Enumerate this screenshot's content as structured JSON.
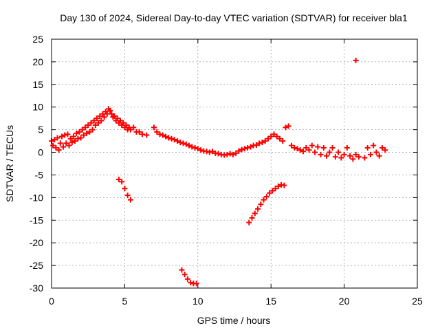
{
  "chart_data": {
    "type": "scatter",
    "title": "Day 130 of 2024, Sidereal Day-to-day VTEC variation (SDTVAR) for receiver bla1",
    "xlabel": "GPS time / hours",
    "ylabel": "SDTVAR / TECUs",
    "xlim": [
      0,
      25
    ],
    "ylim": [
      -30,
      25
    ],
    "xticks": [
      0,
      5,
      10,
      15,
      20,
      25
    ],
    "yticks": [
      -30,
      -25,
      -20,
      -15,
      -10,
      -5,
      0,
      5,
      10,
      15,
      20,
      25
    ],
    "grid": true,
    "marker": "+",
    "color": "#ff0000",
    "series": [
      {
        "name": "main trace",
        "points": [
          [
            0.0,
            2.5
          ],
          [
            0.1,
            1.5
          ],
          [
            0.2,
            2.8
          ],
          [
            0.3,
            1.0
          ],
          [
            0.4,
            3.2
          ],
          [
            0.5,
            0.5
          ],
          [
            0.6,
            2.0
          ],
          [
            0.7,
            3.5
          ],
          [
            0.8,
            1.2
          ],
          [
            0.9,
            3.8
          ],
          [
            1.0,
            2.0
          ],
          [
            1.1,
            4.0
          ],
          [
            1.2,
            1.5
          ],
          [
            1.3,
            3.0
          ],
          [
            1.4,
            2.2
          ],
          [
            1.5,
            3.5
          ],
          [
            1.6,
            2.5
          ],
          [
            1.7,
            4.2
          ],
          [
            1.8,
            3.0
          ],
          [
            1.9,
            4.5
          ],
          [
            2.0,
            3.2
          ],
          [
            2.1,
            5.0
          ],
          [
            2.2,
            3.8
          ],
          [
            2.3,
            5.5
          ],
          [
            2.4,
            4.2
          ],
          [
            2.5,
            6.0
          ],
          [
            2.6,
            4.5
          ],
          [
            2.7,
            6.5
          ],
          [
            2.8,
            5.0
          ],
          [
            2.9,
            7.0
          ],
          [
            3.0,
            6.0
          ],
          [
            3.1,
            7.5
          ],
          [
            3.2,
            6.5
          ],
          [
            3.3,
            8.0
          ],
          [
            3.4,
            7.0
          ],
          [
            3.5,
            8.5
          ],
          [
            3.6,
            7.8
          ],
          [
            3.7,
            9.0
          ],
          [
            3.8,
            8.5
          ],
          [
            3.9,
            9.6
          ],
          [
            4.0,
            9.2
          ],
          [
            4.1,
            8.5
          ],
          [
            4.2,
            7.8
          ],
          [
            4.3,
            8.0
          ],
          [
            4.4,
            7.0
          ],
          [
            4.5,
            7.5
          ],
          [
            4.6,
            6.5
          ],
          [
            4.7,
            7.0
          ],
          [
            4.8,
            6.0
          ],
          [
            4.9,
            6.5
          ],
          [
            5.0,
            5.5
          ],
          [
            5.1,
            6.0
          ],
          [
            5.2,
            5.0
          ],
          [
            5.3,
            5.5
          ],
          [
            5.4,
            5.0
          ],
          [
            5.6,
            5.5
          ],
          [
            5.8,
            4.5
          ],
          [
            6.0,
            4.5
          ],
          [
            6.2,
            4.0
          ],
          [
            6.5,
            3.8
          ],
          [
            7.0,
            5.5
          ],
          [
            7.2,
            4.5
          ],
          [
            7.4,
            4.0
          ],
          [
            7.6,
            3.8
          ],
          [
            7.8,
            3.5
          ],
          [
            8.0,
            3.2
          ],
          [
            8.2,
            3.0
          ],
          [
            8.4,
            2.8
          ],
          [
            8.6,
            2.5
          ],
          [
            8.8,
            2.2
          ],
          [
            9.0,
            2.0
          ],
          [
            9.2,
            1.8
          ],
          [
            9.4,
            1.5
          ],
          [
            9.6,
            1.2
          ],
          [
            9.8,
            1.0
          ],
          [
            10.0,
            0.8
          ],
          [
            10.2,
            0.5
          ],
          [
            10.4,
            0.3
          ],
          [
            10.6,
            0.2
          ],
          [
            10.8,
            0.0
          ],
          [
            11.0,
            0.2
          ],
          [
            11.2,
            -0.2
          ],
          [
            11.4,
            -0.3
          ],
          [
            11.6,
            -0.5
          ],
          [
            11.8,
            -0.6
          ],
          [
            12.0,
            -0.5
          ],
          [
            12.2,
            -0.3
          ],
          [
            12.4,
            -0.5
          ],
          [
            12.6,
            -0.2
          ],
          [
            12.8,
            0.3
          ],
          [
            13.0,
            0.6
          ],
          [
            13.2,
            0.8
          ],
          [
            13.4,
            1.0
          ],
          [
            13.6,
            1.2
          ],
          [
            13.8,
            1.5
          ],
          [
            14.0,
            1.6
          ],
          [
            14.2,
            2.0
          ],
          [
            14.4,
            2.2
          ],
          [
            14.6,
            2.5
          ],
          [
            14.8,
            3.0
          ],
          [
            15.0,
            3.5
          ],
          [
            15.2,
            4.0
          ],
          [
            15.4,
            3.5
          ],
          [
            15.6,
            3.0
          ],
          [
            15.8,
            2.5
          ],
          [
            16.0,
            5.5
          ],
          [
            16.2,
            5.8
          ],
          [
            16.4,
            1.5
          ],
          [
            16.6,
            1.0
          ],
          [
            16.8,
            0.8
          ],
          [
            17.0,
            0.5
          ],
          [
            17.2,
            0.2
          ],
          [
            17.4,
            1.0
          ],
          [
            17.6,
            0.5
          ],
          [
            17.8,
            1.5
          ],
          [
            18.0,
            0.0
          ],
          [
            18.2,
            1.2
          ],
          [
            18.4,
            -0.5
          ],
          [
            18.6,
            1.0
          ],
          [
            18.8,
            -0.8
          ],
          [
            19.0,
            0.0
          ],
          [
            19.2,
            1.0
          ],
          [
            19.4,
            -1.0
          ],
          [
            19.6,
            0.0
          ],
          [
            19.8,
            -1.2
          ],
          [
            20.0,
            -0.5
          ],
          [
            20.2,
            1.0
          ],
          [
            20.4,
            -0.8
          ],
          [
            20.6,
            -1.5
          ],
          [
            20.8,
            -0.5
          ],
          [
            21.0,
            -1.0
          ],
          [
            21.4,
            -1.2
          ],
          [
            21.6,
            1.0
          ],
          [
            21.8,
            -0.5
          ],
          [
            22.0,
            1.5
          ],
          [
            22.2,
            0.0
          ],
          [
            22.4,
            -0.8
          ],
          [
            22.6,
            1.0
          ],
          [
            22.8,
            0.5
          ]
        ]
      },
      {
        "name": "segment 4.6h",
        "points": [
          [
            4.6,
            -6.0
          ],
          [
            4.8,
            -6.5
          ],
          [
            5.0,
            -8.0
          ],
          [
            5.2,
            -9.5
          ],
          [
            5.4,
            -10.5
          ]
        ]
      },
      {
        "name": "segment 8.9h",
        "points": [
          [
            8.9,
            -26.0
          ],
          [
            9.1,
            -27.0
          ],
          [
            9.3,
            -28.0
          ],
          [
            9.5,
            -28.8
          ],
          [
            9.7,
            -29.0
          ],
          [
            9.9,
            -29.0
          ]
        ]
      },
      {
        "name": "segment 13.5h",
        "points": [
          [
            13.5,
            -15.5
          ],
          [
            13.7,
            -14.5
          ],
          [
            13.9,
            -13.5
          ],
          [
            14.1,
            -12.5
          ],
          [
            14.3,
            -11.5
          ],
          [
            14.5,
            -10.5
          ],
          [
            14.7,
            -9.8
          ],
          [
            14.9,
            -9.0
          ],
          [
            15.1,
            -8.5
          ],
          [
            15.3,
            -8.0
          ],
          [
            15.5,
            -7.5
          ],
          [
            15.7,
            -7.2
          ],
          [
            15.9,
            -7.3
          ]
        ]
      },
      {
        "name": "isolated 20.8h",
        "points": [
          [
            20.8,
            20.3
          ]
        ]
      }
    ]
  }
}
